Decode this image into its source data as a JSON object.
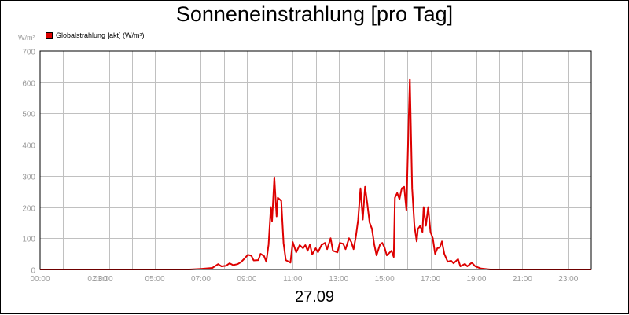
{
  "chart_data": {
    "type": "line",
    "title": "Sonneneinstrahlung [pro Tag]",
    "y_unit": "W/m²",
    "date_label": "27.09",
    "ylim": [
      0,
      700
    ],
    "xlim": [
      0,
      24
    ],
    "grid": true,
    "legend_position": "top-left",
    "y_ticks": [
      {
        "value": 0,
        "label": "0"
      },
      {
        "value": 100,
        "label": "100"
      },
      {
        "value": 200,
        "label": "200"
      },
      {
        "value": 300,
        "label": "300"
      },
      {
        "value": 400,
        "label": "400"
      },
      {
        "value": 500,
        "label": "500"
      },
      {
        "value": 600,
        "label": "600"
      },
      {
        "value": 700,
        "label": "700"
      }
    ],
    "x_ticks": [
      {
        "value": 0,
        "label": "00:00"
      },
      {
        "value": 2,
        "label": "02:00"
      },
      {
        "value": 3,
        "label": "03:00"
      },
      {
        "value": 5,
        "label": "05:00"
      },
      {
        "value": 7,
        "label": "07:00"
      },
      {
        "value": 9,
        "label": "09:00"
      },
      {
        "value": 11,
        "label": "11:00"
      },
      {
        "value": 13,
        "label": "13:00"
      },
      {
        "value": 15,
        "label": "15:00"
      },
      {
        "value": 17,
        "label": "17:00"
      },
      {
        "value": 19,
        "label": "19:00"
      },
      {
        "value": 21,
        "label": "21:00"
      },
      {
        "value": 23,
        "label": "23:00"
      }
    ],
    "series": [
      {
        "name": "Globalstrahlung [akt] (W/m²)",
        "color": "#dd0000",
        "points": [
          [
            0,
            0
          ],
          [
            6.5,
            0
          ],
          [
            7.0,
            2
          ],
          [
            7.5,
            5
          ],
          [
            7.75,
            17
          ],
          [
            7.9,
            10
          ],
          [
            8.1,
            12
          ],
          [
            8.25,
            20
          ],
          [
            8.4,
            14
          ],
          [
            8.6,
            17
          ],
          [
            8.75,
            24
          ],
          [
            8.9,
            35
          ],
          [
            9.05,
            47
          ],
          [
            9.2,
            44
          ],
          [
            9.3,
            29
          ],
          [
            9.5,
            30
          ],
          [
            9.6,
            50
          ],
          [
            9.75,
            43
          ],
          [
            9.85,
            25
          ],
          [
            9.95,
            80
          ],
          [
            10.05,
            200
          ],
          [
            10.1,
            155
          ],
          [
            10.2,
            295
          ],
          [
            10.3,
            170
          ],
          [
            10.35,
            230
          ],
          [
            10.5,
            220
          ],
          [
            10.6,
            85
          ],
          [
            10.7,
            30
          ],
          [
            10.9,
            22
          ],
          [
            11.0,
            88
          ],
          [
            11.15,
            55
          ],
          [
            11.3,
            78
          ],
          [
            11.45,
            68
          ],
          [
            11.55,
            78
          ],
          [
            11.65,
            60
          ],
          [
            11.75,
            80
          ],
          [
            11.85,
            48
          ],
          [
            12.0,
            68
          ],
          [
            12.1,
            55
          ],
          [
            12.25,
            78
          ],
          [
            12.4,
            85
          ],
          [
            12.5,
            65
          ],
          [
            12.65,
            100
          ],
          [
            12.75,
            60
          ],
          [
            12.95,
            55
          ],
          [
            13.05,
            85
          ],
          [
            13.2,
            82
          ],
          [
            13.3,
            65
          ],
          [
            13.45,
            100
          ],
          [
            13.55,
            88
          ],
          [
            13.65,
            65
          ],
          [
            13.75,
            105
          ],
          [
            13.85,
            160
          ],
          [
            13.95,
            260
          ],
          [
            14.05,
            160
          ],
          [
            14.15,
            265
          ],
          [
            14.25,
            210
          ],
          [
            14.35,
            150
          ],
          [
            14.45,
            130
          ],
          [
            14.55,
            80
          ],
          [
            14.65,
            45
          ],
          [
            14.8,
            80
          ],
          [
            14.9,
            85
          ],
          [
            15.0,
            70
          ],
          [
            15.1,
            45
          ],
          [
            15.3,
            60
          ],
          [
            15.4,
            40
          ],
          [
            15.45,
            230
          ],
          [
            15.55,
            245
          ],
          [
            15.65,
            225
          ],
          [
            15.75,
            260
          ],
          [
            15.85,
            265
          ],
          [
            15.95,
            190
          ],
          [
            16.05,
            480
          ],
          [
            16.1,
            610
          ],
          [
            16.2,
            260
          ],
          [
            16.3,
            140
          ],
          [
            16.4,
            90
          ],
          [
            16.45,
            130
          ],
          [
            16.55,
            140
          ],
          [
            16.65,
            120
          ],
          [
            16.7,
            200
          ],
          [
            16.8,
            140
          ],
          [
            16.9,
            200
          ],
          [
            17.0,
            120
          ],
          [
            17.1,
            100
          ],
          [
            17.2,
            50
          ],
          [
            17.3,
            68
          ],
          [
            17.4,
            70
          ],
          [
            17.5,
            90
          ],
          [
            17.6,
            50
          ],
          [
            17.75,
            25
          ],
          [
            17.9,
            28
          ],
          [
            18.0,
            20
          ],
          [
            18.2,
            33
          ],
          [
            18.3,
            10
          ],
          [
            18.5,
            18
          ],
          [
            18.6,
            10
          ],
          [
            18.8,
            22
          ],
          [
            18.95,
            10
          ],
          [
            19.2,
            3
          ],
          [
            19.6,
            0
          ],
          [
            24,
            0
          ]
        ]
      }
    ]
  }
}
